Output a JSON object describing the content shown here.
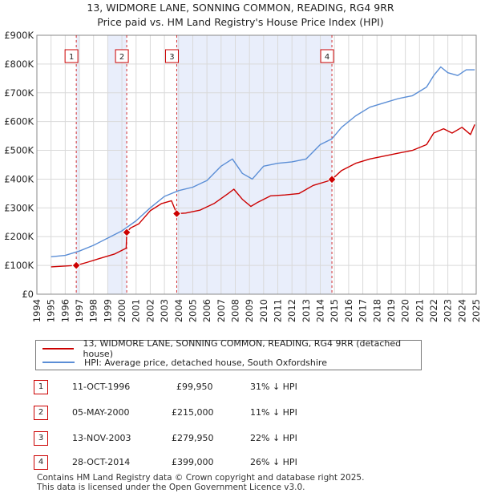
{
  "title_line1": "13, WIDMORE LANE, SONNING COMMON, READING, RG4 9RR",
  "title_line2": "Price paid vs. HM Land Registry's House Price Index (HPI)",
  "colors": {
    "property": "#cc0000",
    "hpi": "#5b8ed6",
    "shade": "#e9eefb",
    "grid": "#d9d9d9"
  },
  "chart_data": {
    "type": "line",
    "title": "Price paid vs. HM Land Registry's House Price Index (HPI)",
    "xlim": [
      1994,
      2025
    ],
    "ylim": [
      0,
      900000
    ],
    "x_ticks": [
      1994,
      1995,
      1996,
      1997,
      1998,
      1999,
      2000,
      2001,
      2002,
      2003,
      2004,
      2005,
      2006,
      2007,
      2008,
      2009,
      2010,
      2011,
      2012,
      2013,
      2014,
      2015,
      2016,
      2017,
      2018,
      2019,
      2020,
      2021,
      2022,
      2023,
      2024,
      2025
    ],
    "y_ticks": [
      {
        "value": 0,
        "label": "£0"
      },
      {
        "value": 100000,
        "label": "£100K"
      },
      {
        "value": 200000,
        "label": "£200K"
      },
      {
        "value": 300000,
        "label": "£300K"
      },
      {
        "value": 400000,
        "label": "£400K"
      },
      {
        "value": 500000,
        "label": "£500K"
      },
      {
        "value": 600000,
        "label": "£600K"
      },
      {
        "value": 700000,
        "label": "£700K"
      },
      {
        "value": 800000,
        "label": "£800K"
      },
      {
        "value": 900000,
        "label": "£900K"
      }
    ],
    "shaded_ranges": [
      [
        1996.78,
        1997.0
      ],
      [
        1999.0,
        2000.34
      ],
      [
        2003.87,
        2014.82
      ]
    ],
    "series": [
      {
        "name": "13, WIDMORE LANE, SONNING COMMON, READING, RG4 9RR (detached house)",
        "x": [
          1995.0,
          1996.78,
          1997.5,
          1998.5,
          1999.5,
          2000.3,
          2000.34,
          2000.6,
          2001.2,
          2002.0,
          2002.8,
          2003.5,
          2003.87,
          2004.5,
          2005.5,
          2006.5,
          2007.5,
          2007.9,
          2008.5,
          2009.1,
          2009.6,
          2010.5,
          2011.5,
          2012.5,
          2013.5,
          2014.5,
          2014.82,
          2015.5,
          2016.5,
          2017.5,
          2018.5,
          2019.5,
          2020.5,
          2021.5,
          2022.0,
          2022.7,
          2023.3,
          2024.0,
          2024.6,
          2024.9
        ],
        "y": [
          95000,
          99950,
          110000,
          125000,
          140000,
          160000,
          215000,
          230000,
          245000,
          290000,
          315000,
          325000,
          279950,
          282000,
          292000,
          315000,
          350000,
          365000,
          330000,
          305000,
          320000,
          342000,
          345000,
          350000,
          378000,
          393000,
          399000,
          430000,
          455000,
          470000,
          480000,
          490000,
          500000,
          520000,
          560000,
          575000,
          560000,
          580000,
          555000,
          590000
        ]
      },
      {
        "name": "HPI: Average price, detached house, South Oxfordshire",
        "x": [
          1995.0,
          1996.0,
          1997.0,
          1998.0,
          1999.0,
          2000.0,
          2001.0,
          2002.0,
          2003.0,
          2004.0,
          2005.0,
          2006.0,
          2007.0,
          2007.8,
          2008.5,
          2009.2,
          2010.0,
          2011.0,
          2012.0,
          2013.0,
          2014.0,
          2014.82,
          2015.5,
          2016.5,
          2017.5,
          2018.5,
          2019.5,
          2020.5,
          2021.5,
          2022.0,
          2022.5,
          2023.0,
          2023.7,
          2024.3,
          2024.9
        ],
        "y": [
          130000,
          135000,
          150000,
          170000,
          195000,
          220000,
          255000,
          300000,
          340000,
          360000,
          372000,
          395000,
          445000,
          470000,
          420000,
          400000,
          445000,
          455000,
          460000,
          470000,
          520000,
          540000,
          580000,
          620000,
          650000,
          665000,
          680000,
          690000,
          720000,
          760000,
          790000,
          770000,
          760000,
          780000,
          780000
        ]
      }
    ],
    "sales": [
      {
        "id": "1",
        "date": "11-OCT-1996",
        "price": "£99,950",
        "delta": "31% ↓ HPI",
        "x": 1996.78,
        "y": 99950
      },
      {
        "id": "2",
        "date": "05-MAY-2000",
        "price": "£215,000",
        "delta": "11% ↓ HPI",
        "x": 2000.34,
        "y": 215000
      },
      {
        "id": "3",
        "date": "13-NOV-2003",
        "price": "£279,950",
        "delta": "22% ↓ HPI",
        "x": 2003.87,
        "y": 279950
      },
      {
        "id": "4",
        "date": "28-OCT-2014",
        "price": "£399,000",
        "delta": "26% ↓ HPI",
        "x": 2014.82,
        "y": 399000
      }
    ]
  },
  "legend": {
    "property": "13, WIDMORE LANE, SONNING COMMON, READING, RG4 9RR (detached house)",
    "hpi": "HPI: Average price, detached house, South Oxfordshire"
  },
  "footer_line1": "Contains HM Land Registry data © Crown copyright and database right 2025.",
  "footer_line2": "This data is licensed under the Open Government Licence v3.0."
}
